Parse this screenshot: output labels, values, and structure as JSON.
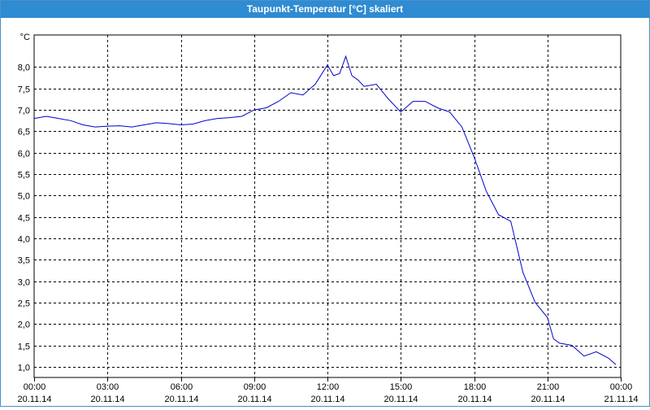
{
  "window": {
    "title": "Taupunkt-Temperatur [°C] skaliert"
  },
  "chart_data": {
    "type": "line",
    "title": "Taupunkt-Temperatur [°C] skaliert",
    "ylabel": "°C",
    "xlabel": "",
    "ylim": [
      0.75,
      8.75
    ],
    "yticks": [
      "1,0",
      "1,5",
      "2,0",
      "2,5",
      "3,0",
      "3,5",
      "4,0",
      "4,5",
      "5,0",
      "5,5",
      "6,0",
      "6,5",
      "7,0",
      "7,5",
      "8,0"
    ],
    "ytick_values": [
      1.0,
      1.5,
      2.0,
      2.5,
      3.0,
      3.5,
      4.0,
      4.5,
      5.0,
      5.5,
      6.0,
      6.5,
      7.0,
      7.5,
      8.0
    ],
    "xlim_hours": [
      0,
      24
    ],
    "xticks": [
      {
        "time": "00:00",
        "date": "20.11.14"
      },
      {
        "time": "03:00",
        "date": "20.11.14"
      },
      {
        "time": "06:00",
        "date": "20.11.14"
      },
      {
        "time": "09:00",
        "date": "20.11.14"
      },
      {
        "time": "12:00",
        "date": "20.11.14"
      },
      {
        "time": "15:00",
        "date": "20.11.14"
      },
      {
        "time": "18:00",
        "date": "20.11.14"
      },
      {
        "time": "21:00",
        "date": "20.11.14"
      },
      {
        "time": "00:00",
        "date": "21.11.14"
      }
    ],
    "grid": true,
    "line_color": "#0000cc",
    "series": [
      {
        "x": [
          0,
          0.5,
          1,
          1.5,
          2,
          2.5,
          3,
          3.5,
          4,
          4.5,
          5,
          5.5,
          6,
          6.5,
          7,
          7.5,
          8,
          8.5,
          9,
          9.5,
          10,
          10.5,
          11,
          11.5,
          12,
          12.25,
          12.5,
          12.75,
          13,
          13.25,
          13.5,
          14,
          14.5,
          15,
          15.5,
          16,
          16.5,
          17,
          17.5,
          18,
          18.5,
          19,
          19.5,
          20,
          20.5,
          21,
          21.25,
          21.5,
          22,
          22.5,
          23,
          23.5,
          23.8
        ],
        "y": [
          6.8,
          6.85,
          6.8,
          6.75,
          6.65,
          6.6,
          6.62,
          6.63,
          6.6,
          6.65,
          6.7,
          6.68,
          6.65,
          6.67,
          6.75,
          6.8,
          6.82,
          6.85,
          7.0,
          7.05,
          7.2,
          7.4,
          7.35,
          7.6,
          8.05,
          7.8,
          7.85,
          8.25,
          7.8,
          7.7,
          7.55,
          7.6,
          7.25,
          6.95,
          7.2,
          7.2,
          7.05,
          6.95,
          6.6,
          5.9,
          5.1,
          4.55,
          4.4,
          3.2,
          2.5,
          2.15,
          1.65,
          1.55,
          1.5,
          1.25,
          1.35,
          1.2,
          1.05
        ]
      }
    ]
  }
}
